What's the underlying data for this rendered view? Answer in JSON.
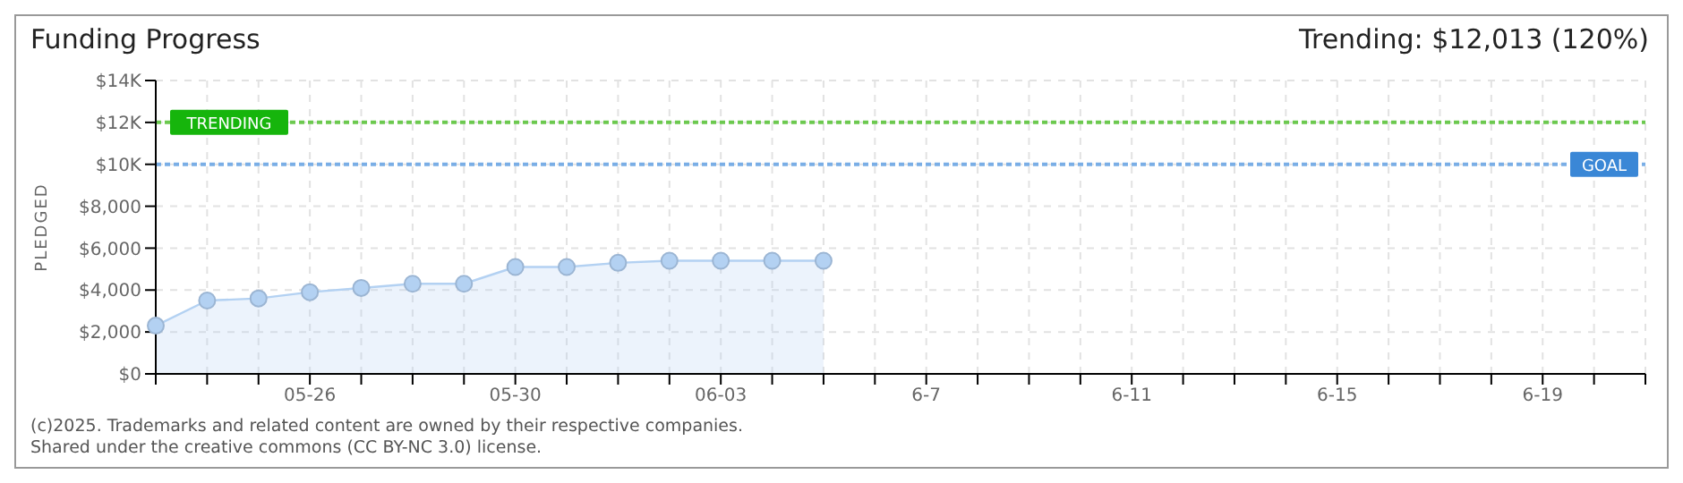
{
  "chart_data": {
    "type": "area",
    "title": "Funding Progress",
    "subtitle": "Trending: $12,013 (120%)",
    "ylabel": "PLEDGED",
    "categories": [
      null,
      null,
      null,
      "05-26",
      null,
      null,
      null,
      "05-30",
      null,
      null,
      null,
      "06-03",
      null,
      null,
      null,
      "6-7",
      null,
      null,
      null,
      "6-11",
      null,
      null,
      null,
      "6-15",
      null,
      null,
      null,
      "6-19",
      null,
      null
    ],
    "series": [
      {
        "color": "#b3d1f2",
        "values": [
          2300,
          3500,
          3600,
          3900,
          4100,
          4300,
          4300,
          5100,
          5100,
          5300,
          5400,
          5400,
          5400,
          5400,
          null,
          null,
          null,
          null,
          null,
          null,
          null,
          null,
          null,
          null,
          null,
          null,
          null,
          null,
          null,
          null
        ]
      }
    ],
    "ylim": [
      0,
      14000
    ],
    "yticks": [
      {
        "value": 0,
        "label": "$0"
      },
      {
        "value": 2000,
        "label": "$2,000"
      },
      {
        "value": 4000,
        "label": "$4,000"
      },
      {
        "value": 6000,
        "label": "$6,000"
      },
      {
        "value": 8000,
        "label": "$8,000"
      },
      {
        "value": 10000,
        "label": "$10K"
      },
      {
        "value": 12000,
        "label": "$12K"
      },
      {
        "value": 14000,
        "label": "$14K"
      }
    ],
    "ref_lines": [
      {
        "axis": "y",
        "value": 12000,
        "label": "TRENDING",
        "color": "#6cc94f",
        "line_style": "dotted"
      },
      {
        "axis": "y",
        "value": 10000,
        "label": "GOAL",
        "color": "#7aaee6",
        "line_style": "dotted"
      }
    ],
    "grid": true,
    "marker": "circle",
    "legend": false,
    "annotations": [
      "(c)2025. Trademarks and related content are owned by their respective companies.",
      "Shared under the creative commons (CC BY-NC 3.0) license."
    ]
  }
}
